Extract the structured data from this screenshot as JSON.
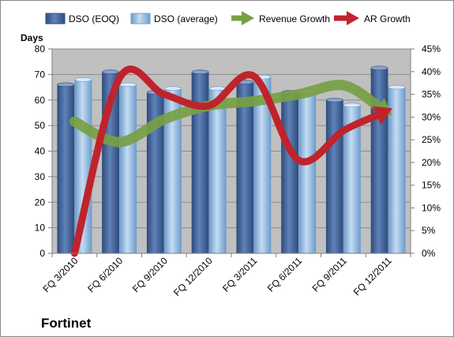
{
  "chart_data": {
    "type": "bar",
    "company": "Fortinet",
    "y_left_label": "Days",
    "y_left_range": [
      0,
      80
    ],
    "y_left_ticks": [
      "0",
      "10",
      "20",
      "30",
      "40",
      "50",
      "60",
      "70",
      "80"
    ],
    "y_right_range": [
      0,
      45
    ],
    "y_right_ticks": [
      "0%",
      "5%",
      "10%",
      "15%",
      "20%",
      "25%",
      "30%",
      "35%",
      "40%",
      "45%"
    ],
    "categories": [
      "FQ 3/2010",
      "FQ 6/2010",
      "FQ 9/2010",
      "FQ 12/2010",
      "FQ 3/2011",
      "FQ 6/2011",
      "FQ 9/2011",
      "FQ 12/2011"
    ],
    "x_tick_labels": [
      "FQ 3/2010",
      "FQ 6/2010",
      "FQ 9/2010",
      "FQ 12/2010",
      "FQ 3/2011",
      "FQ 6/2011",
      "FQ 9/2011",
      "FQ 12/2011"
    ],
    "grid": true,
    "legend_position": "top",
    "series": [
      {
        "name": "DSO (EOQ)",
        "type": "bar",
        "axis": "left",
        "color": "#4a6a9c",
        "values": [
          66,
          71,
          63,
          71,
          67,
          63,
          60,
          72.5
        ]
      },
      {
        "name": "DSO (average)",
        "type": "bar",
        "axis": "left",
        "color": "#9cc3e6",
        "values": [
          68,
          66,
          64.5,
          64.5,
          69,
          63.5,
          58,
          65
        ]
      },
      {
        "name": "Revenue Growth",
        "type": "line",
        "axis": "right",
        "color": "#77a043",
        "values": [
          29,
          24.5,
          29.5,
          32.5,
          33.5,
          35,
          37,
          31
        ]
      },
      {
        "name": "AR Growth",
        "type": "line",
        "axis": "right",
        "color": "#c0232c",
        "values": [
          0,
          38.5,
          35,
          32.5,
          39,
          20.5,
          27,
          31.5
        ]
      }
    ]
  }
}
